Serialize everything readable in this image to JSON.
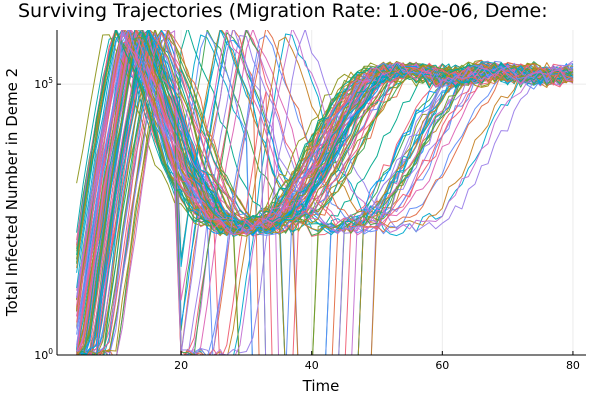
{
  "chart_data": {
    "type": "line",
    "title": "Surviving Trajectories (Migration Rate: 1.00e-06, Deme:",
    "xlabel": "Time",
    "ylabel": "Total Infected Number in Deme 2",
    "xlim": [
      1,
      82
    ],
    "y_scale": "log10",
    "ylim": [
      1,
      1000000
    ],
    "x_ticks": [
      20,
      40,
      60,
      80
    ],
    "y_ticks": [
      {
        "value": 1,
        "base": "10",
        "exp": "0"
      },
      {
        "value": 100000,
        "base": "10",
        "exp": "5"
      }
    ],
    "grid": true,
    "legend": "none",
    "palette": [
      "#009AFA",
      "#E36F47",
      "#3EA44E",
      "#C371D2",
      "#AC8E18",
      "#00A9AD",
      "#ED5E93",
      "#C68225",
      "#00A98D",
      "#8E971E",
      "#00A9CD",
      "#9B7FE9",
      "#618DF6",
      "#F05F73",
      "#DD64B5",
      "#6B9E32"
    ],
    "series_template": {
      "t": [
        4,
        8,
        12,
        16,
        20,
        24,
        28,
        32,
        36,
        40,
        44,
        48,
        52,
        56,
        60,
        64,
        68,
        72,
        76,
        80
      ],
      "log10_y": [
        0.0,
        3.4,
        6.1,
        4.9,
        3.4,
        2.6,
        2.3,
        2.4,
        2.7,
        3.5,
        4.4,
        5.1,
        5.3,
        5.25,
        5.05,
        5.2,
        5.3,
        5.1,
        5.2,
        5.15
      ],
      "count": 120,
      "timing_spread": 3.2,
      "note_on_variation": "each trajectory shifts in onset timing; some extinguish (drop to 10^0) during the trough around t≈22–35"
    },
    "series": [
      {
        "color_index": 0,
        "shift": 0.0,
        "dies_at": null
      },
      {
        "color_index": 1,
        "shift": -1.2,
        "dies_at": null
      },
      {
        "color_index": 2,
        "shift": 1.1,
        "dies_at": 26
      },
      {
        "color_index": 3,
        "shift": 2.5,
        "dies_at": null
      },
      {
        "color_index": 4,
        "shift": -2.1,
        "dies_at": 34
      },
      {
        "color_index": 5,
        "shift": 0.6,
        "dies_at": null
      },
      {
        "color_index": 6,
        "shift": 4.0,
        "dies_at": null
      },
      {
        "color_index": 7,
        "shift": -0.4,
        "dies_at": 30
      },
      {
        "color_index": 8,
        "shift": 1.8,
        "dies_at": null
      },
      {
        "color_index": 9,
        "shift": -1.6,
        "dies_at": null
      },
      {
        "color_index": 10,
        "shift": 3.0,
        "dies_at": 45
      },
      {
        "color_index": 11,
        "shift": 0.3,
        "dies_at": null
      },
      {
        "color_index": 12,
        "shift": 2.2,
        "dies_at": null
      },
      {
        "color_index": 13,
        "shift": -0.9,
        "dies_at": 24
      },
      {
        "color_index": 14,
        "shift": 5.5,
        "dies_at": null
      },
      {
        "color_index": 15,
        "shift": 1.4,
        "dies_at": null
      }
    ]
  }
}
